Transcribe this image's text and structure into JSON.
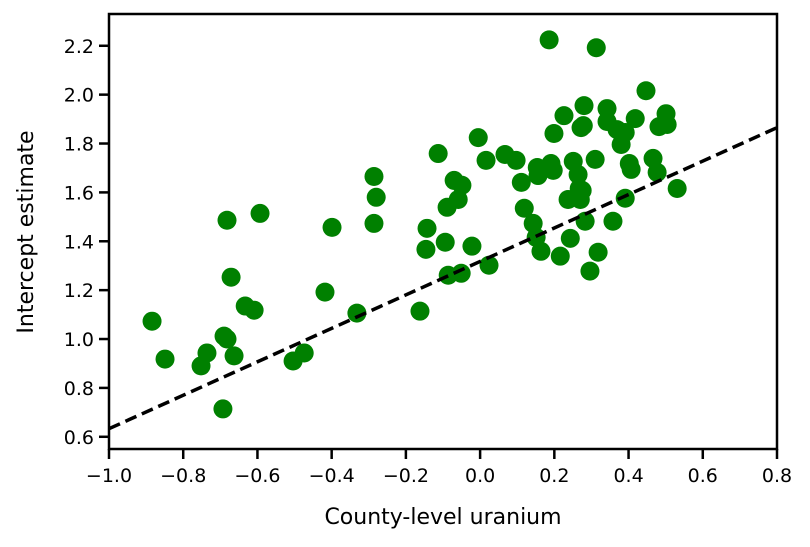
{
  "chart_data": {
    "type": "scatter",
    "title": "",
    "xlabel": "County-level uranium",
    "ylabel": "Intercept estimate",
    "xlim": [
      -1.0,
      0.8
    ],
    "ylim": [
      0.55,
      2.33
    ],
    "xticks": [
      -1.0,
      -0.8,
      -0.6,
      -0.4,
      -0.2,
      0.0,
      0.2,
      0.4,
      0.6,
      0.8
    ],
    "xtick_labels": [
      "−1.0",
      "−0.8",
      "−0.6",
      "−0.4",
      "−0.2",
      "0.0",
      "0.2",
      "0.4",
      "0.6",
      "0.8"
    ],
    "yticks": [
      0.6,
      0.8,
      1.0,
      1.2,
      1.4,
      1.6,
      1.8,
      2.0,
      2.2
    ],
    "ytick_labels": [
      "0.6",
      "0.8",
      "1.0",
      "1.2",
      "1.4",
      "1.6",
      "1.8",
      "2.0",
      "2.2"
    ],
    "grid": false,
    "marker_color": "#008000",
    "line_color": "#000000",
    "points": [
      [
        -0.884,
        1.073
      ],
      [
        -0.849,
        0.918
      ],
      [
        -0.736,
        0.943
      ],
      [
        -0.752,
        0.89
      ],
      [
        -0.69,
        1.012
      ],
      [
        -0.682,
        1.0
      ],
      [
        -0.682,
        1.486
      ],
      [
        -0.671,
        1.253
      ],
      [
        -0.663,
        0.931
      ],
      [
        -0.693,
        0.714
      ],
      [
        -0.633,
        1.135
      ],
      [
        -0.609,
        1.118
      ],
      [
        -0.593,
        1.514
      ],
      [
        -0.504,
        0.91
      ],
      [
        -0.474,
        0.943
      ],
      [
        -0.418,
        1.192
      ],
      [
        -0.399,
        1.457
      ],
      [
        -0.332,
        1.106
      ],
      [
        -0.286,
        1.665
      ],
      [
        -0.28,
        1.58
      ],
      [
        -0.286,
        1.473
      ],
      [
        -0.162,
        1.114
      ],
      [
        -0.143,
        1.453
      ],
      [
        -0.146,
        1.367
      ],
      [
        -0.113,
        1.759
      ],
      [
        -0.094,
        1.396
      ],
      [
        -0.086,
        1.261
      ],
      [
        -0.089,
        1.539
      ],
      [
        -0.07,
        1.649
      ],
      [
        -0.059,
        1.571
      ],
      [
        -0.049,
        1.629
      ],
      [
        -0.051,
        1.269
      ],
      [
        -0.022,
        1.38
      ],
      [
        -0.005,
        1.824
      ],
      [
        0.016,
        1.731
      ],
      [
        0.024,
        1.302
      ],
      [
        0.067,
        1.755
      ],
      [
        0.097,
        1.731
      ],
      [
        0.111,
        1.641
      ],
      [
        0.119,
        1.535
      ],
      [
        0.143,
        1.473
      ],
      [
        0.151,
        1.416
      ],
      [
        0.154,
        1.702
      ],
      [
        0.156,
        1.669
      ],
      [
        0.164,
        1.359
      ],
      [
        0.186,
        2.224
      ],
      [
        0.191,
        1.718
      ],
      [
        0.197,
        1.69
      ],
      [
        0.199,
        1.841
      ],
      [
        0.216,
        1.339
      ],
      [
        0.226,
        1.914
      ],
      [
        0.237,
        1.571
      ],
      [
        0.243,
        1.412
      ],
      [
        0.251,
        1.727
      ],
      [
        0.264,
        1.673
      ],
      [
        0.267,
        1.616
      ],
      [
        0.27,
        1.571
      ],
      [
        0.272,
        1.865
      ],
      [
        0.278,
        1.873
      ],
      [
        0.28,
        1.955
      ],
      [
        0.283,
        1.482
      ],
      [
        0.275,
        1.608
      ],
      [
        0.296,
        1.278
      ],
      [
        0.31,
        1.735
      ],
      [
        0.313,
        2.192
      ],
      [
        0.318,
        1.355
      ],
      [
        0.342,
        1.943
      ],
      [
        0.342,
        1.89
      ],
      [
        0.358,
        1.482
      ],
      [
        0.369,
        1.857
      ],
      [
        0.38,
        1.796
      ],
      [
        0.391,
        1.845
      ],
      [
        0.391,
        1.576
      ],
      [
        0.402,
        1.718
      ],
      [
        0.407,
        1.694
      ],
      [
        0.418,
        1.902
      ],
      [
        0.447,
        2.016
      ],
      [
        0.466,
        1.739
      ],
      [
        0.477,
        1.682
      ],
      [
        0.482,
        1.869
      ],
      [
        0.501,
        1.922
      ],
      [
        0.504,
        1.878
      ],
      [
        0.531,
        1.616
      ]
    ],
    "fit_line": {
      "style": "dashed",
      "x": [
        -1.0,
        0.8
      ],
      "y": [
        0.633,
        1.865
      ]
    }
  }
}
